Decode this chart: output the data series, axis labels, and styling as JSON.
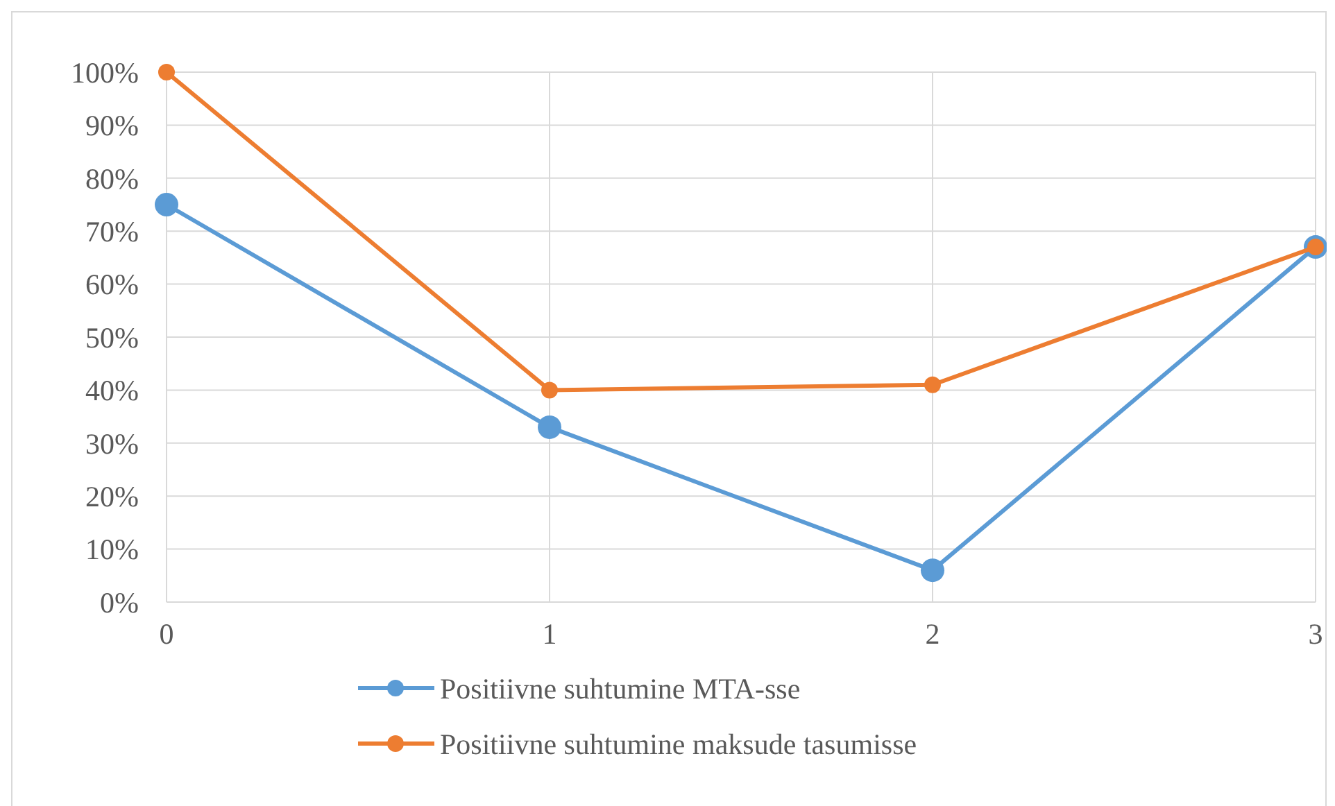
{
  "chart_data": {
    "type": "line",
    "x": [
      0,
      1,
      2,
      3
    ],
    "xlim": [
      0,
      3
    ],
    "xticks": [
      0,
      1,
      2,
      3
    ],
    "ylim": [
      0,
      100
    ],
    "yticks": [
      {
        "value": 0,
        "label": "0%"
      },
      {
        "value": 10,
        "label": "10%"
      },
      {
        "value": 20,
        "label": "20%"
      },
      {
        "value": 30,
        "label": "30%"
      },
      {
        "value": 40,
        "label": "40%"
      },
      {
        "value": 50,
        "label": "50%"
      },
      {
        "value": 60,
        "label": "60%"
      },
      {
        "value": 70,
        "label": "70%"
      },
      {
        "value": 80,
        "label": "80%"
      },
      {
        "value": 90,
        "label": "90%"
      },
      {
        "value": 100,
        "label": "100%"
      }
    ],
    "grid": true,
    "legend": "bottom",
    "marker": "circle",
    "line_style": "solid",
    "series": [
      {
        "name": "Positiivne suhtumine MTA-sse",
        "color": "#5b9bd5",
        "values": [
          75,
          33,
          6,
          67
        ]
      },
      {
        "name": "Positiivne suhtumine maksude tasumisse",
        "color": "#ed7d31",
        "values": [
          100,
          40,
          41,
          67
        ]
      }
    ]
  }
}
